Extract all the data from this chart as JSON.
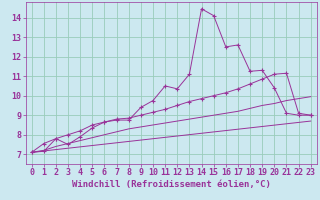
{
  "xlabel": "Windchill (Refroidissement éolien,°C)",
  "background_color": "#cce8f0",
  "grid_color": "#99ccbb",
  "line_color": "#993399",
  "xlim": [
    -0.5,
    23.5
  ],
  "ylim": [
    6.5,
    14.8
  ],
  "xticks": [
    0,
    1,
    2,
    3,
    4,
    5,
    6,
    7,
    8,
    9,
    10,
    11,
    12,
    13,
    14,
    15,
    16,
    17,
    18,
    19,
    20,
    21,
    22,
    23
  ],
  "yticks": [
    7,
    8,
    9,
    10,
    11,
    12,
    13,
    14
  ],
  "series1_x": [
    0,
    1,
    2,
    3,
    4,
    5,
    6,
    7,
    8,
    9,
    10,
    11,
    12,
    13,
    14,
    15,
    16,
    17,
    18,
    19,
    20,
    21,
    22,
    23
  ],
  "series1_y": [
    7.1,
    7.55,
    7.8,
    7.5,
    7.9,
    8.35,
    8.65,
    8.75,
    8.75,
    9.4,
    9.75,
    10.5,
    10.35,
    11.1,
    14.45,
    14.1,
    12.5,
    12.6,
    11.25,
    11.3,
    10.4,
    9.1,
    9.0,
    9.0
  ],
  "series2_x": [
    0,
    1,
    2,
    3,
    4,
    5,
    6,
    7,
    8,
    9,
    10,
    11,
    12,
    13,
    14,
    15,
    16,
    17,
    18,
    19,
    20,
    21,
    22,
    23
  ],
  "series2_y": [
    7.1,
    7.15,
    7.8,
    8.0,
    8.2,
    8.5,
    8.65,
    8.8,
    8.85,
    9.0,
    9.15,
    9.3,
    9.5,
    9.7,
    9.85,
    10.0,
    10.15,
    10.35,
    10.6,
    10.85,
    11.1,
    11.15,
    9.1,
    9.0
  ],
  "series3_x": [
    0,
    1,
    2,
    3,
    4,
    5,
    6,
    7,
    8,
    9,
    10,
    11,
    12,
    13,
    14,
    15,
    16,
    17,
    18,
    19,
    20,
    21,
    22,
    23
  ],
  "series3_y": [
    7.1,
    7.2,
    7.4,
    7.55,
    7.7,
    7.85,
    8.0,
    8.15,
    8.3,
    8.4,
    8.5,
    8.6,
    8.7,
    8.8,
    8.9,
    9.0,
    9.1,
    9.2,
    9.35,
    9.5,
    9.6,
    9.75,
    9.85,
    9.95
  ],
  "series4_x": [
    0,
    23
  ],
  "series4_y": [
    7.1,
    8.7
  ],
  "xlabel_fontsize": 6.5,
  "tick_fontsize": 6
}
